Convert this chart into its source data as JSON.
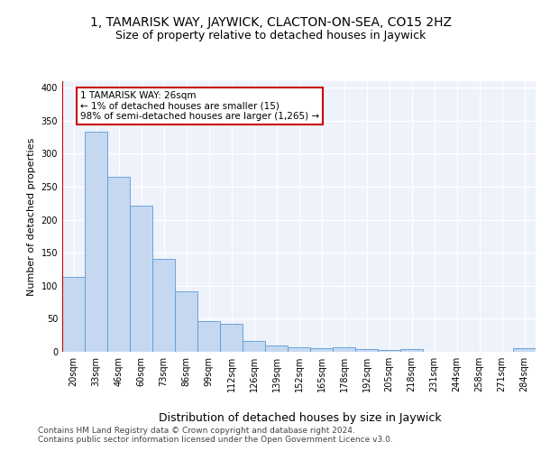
{
  "title1": "1, TAMARISK WAY, JAYWICK, CLACTON-ON-SEA, CO15 2HZ",
  "title2": "Size of property relative to detached houses in Jaywick",
  "xlabel": "Distribution of detached houses by size in Jaywick",
  "ylabel": "Number of detached properties",
  "categories": [
    "20sqm",
    "33sqm",
    "46sqm",
    "60sqm",
    "73sqm",
    "86sqm",
    "99sqm",
    "112sqm",
    "126sqm",
    "139sqm",
    "152sqm",
    "165sqm",
    "178sqm",
    "192sqm",
    "205sqm",
    "218sqm",
    "231sqm",
    "244sqm",
    "258sqm",
    "271sqm",
    "284sqm"
  ],
  "values": [
    113,
    333,
    265,
    221,
    141,
    91,
    46,
    43,
    16,
    10,
    7,
    5,
    7,
    4,
    3,
    4,
    0,
    0,
    0,
    0,
    5
  ],
  "bar_color": "#c5d8f0",
  "bar_edge_color": "#5b9bd5",
  "annotation_box_text": "1 TAMARISK WAY: 26sqm\n← 1% of detached houses are smaller (15)\n98% of semi-detached houses are larger (1,265) →",
  "annotation_box_color": "#ffffff",
  "annotation_box_edge_color": "#cc0000",
  "ylim": [
    0,
    410
  ],
  "yticks": [
    0,
    50,
    100,
    150,
    200,
    250,
    300,
    350,
    400
  ],
  "footer": "Contains HM Land Registry data © Crown copyright and database right 2024.\nContains public sector information licensed under the Open Government Licence v3.0.",
  "bg_color": "#eef2fb",
  "grid_color": "#ffffff",
  "title1_fontsize": 10,
  "title2_fontsize": 9,
  "xlabel_fontsize": 9,
  "ylabel_fontsize": 8,
  "tick_fontsize": 7,
  "footer_fontsize": 6.5,
  "ann_fontsize": 7.5
}
